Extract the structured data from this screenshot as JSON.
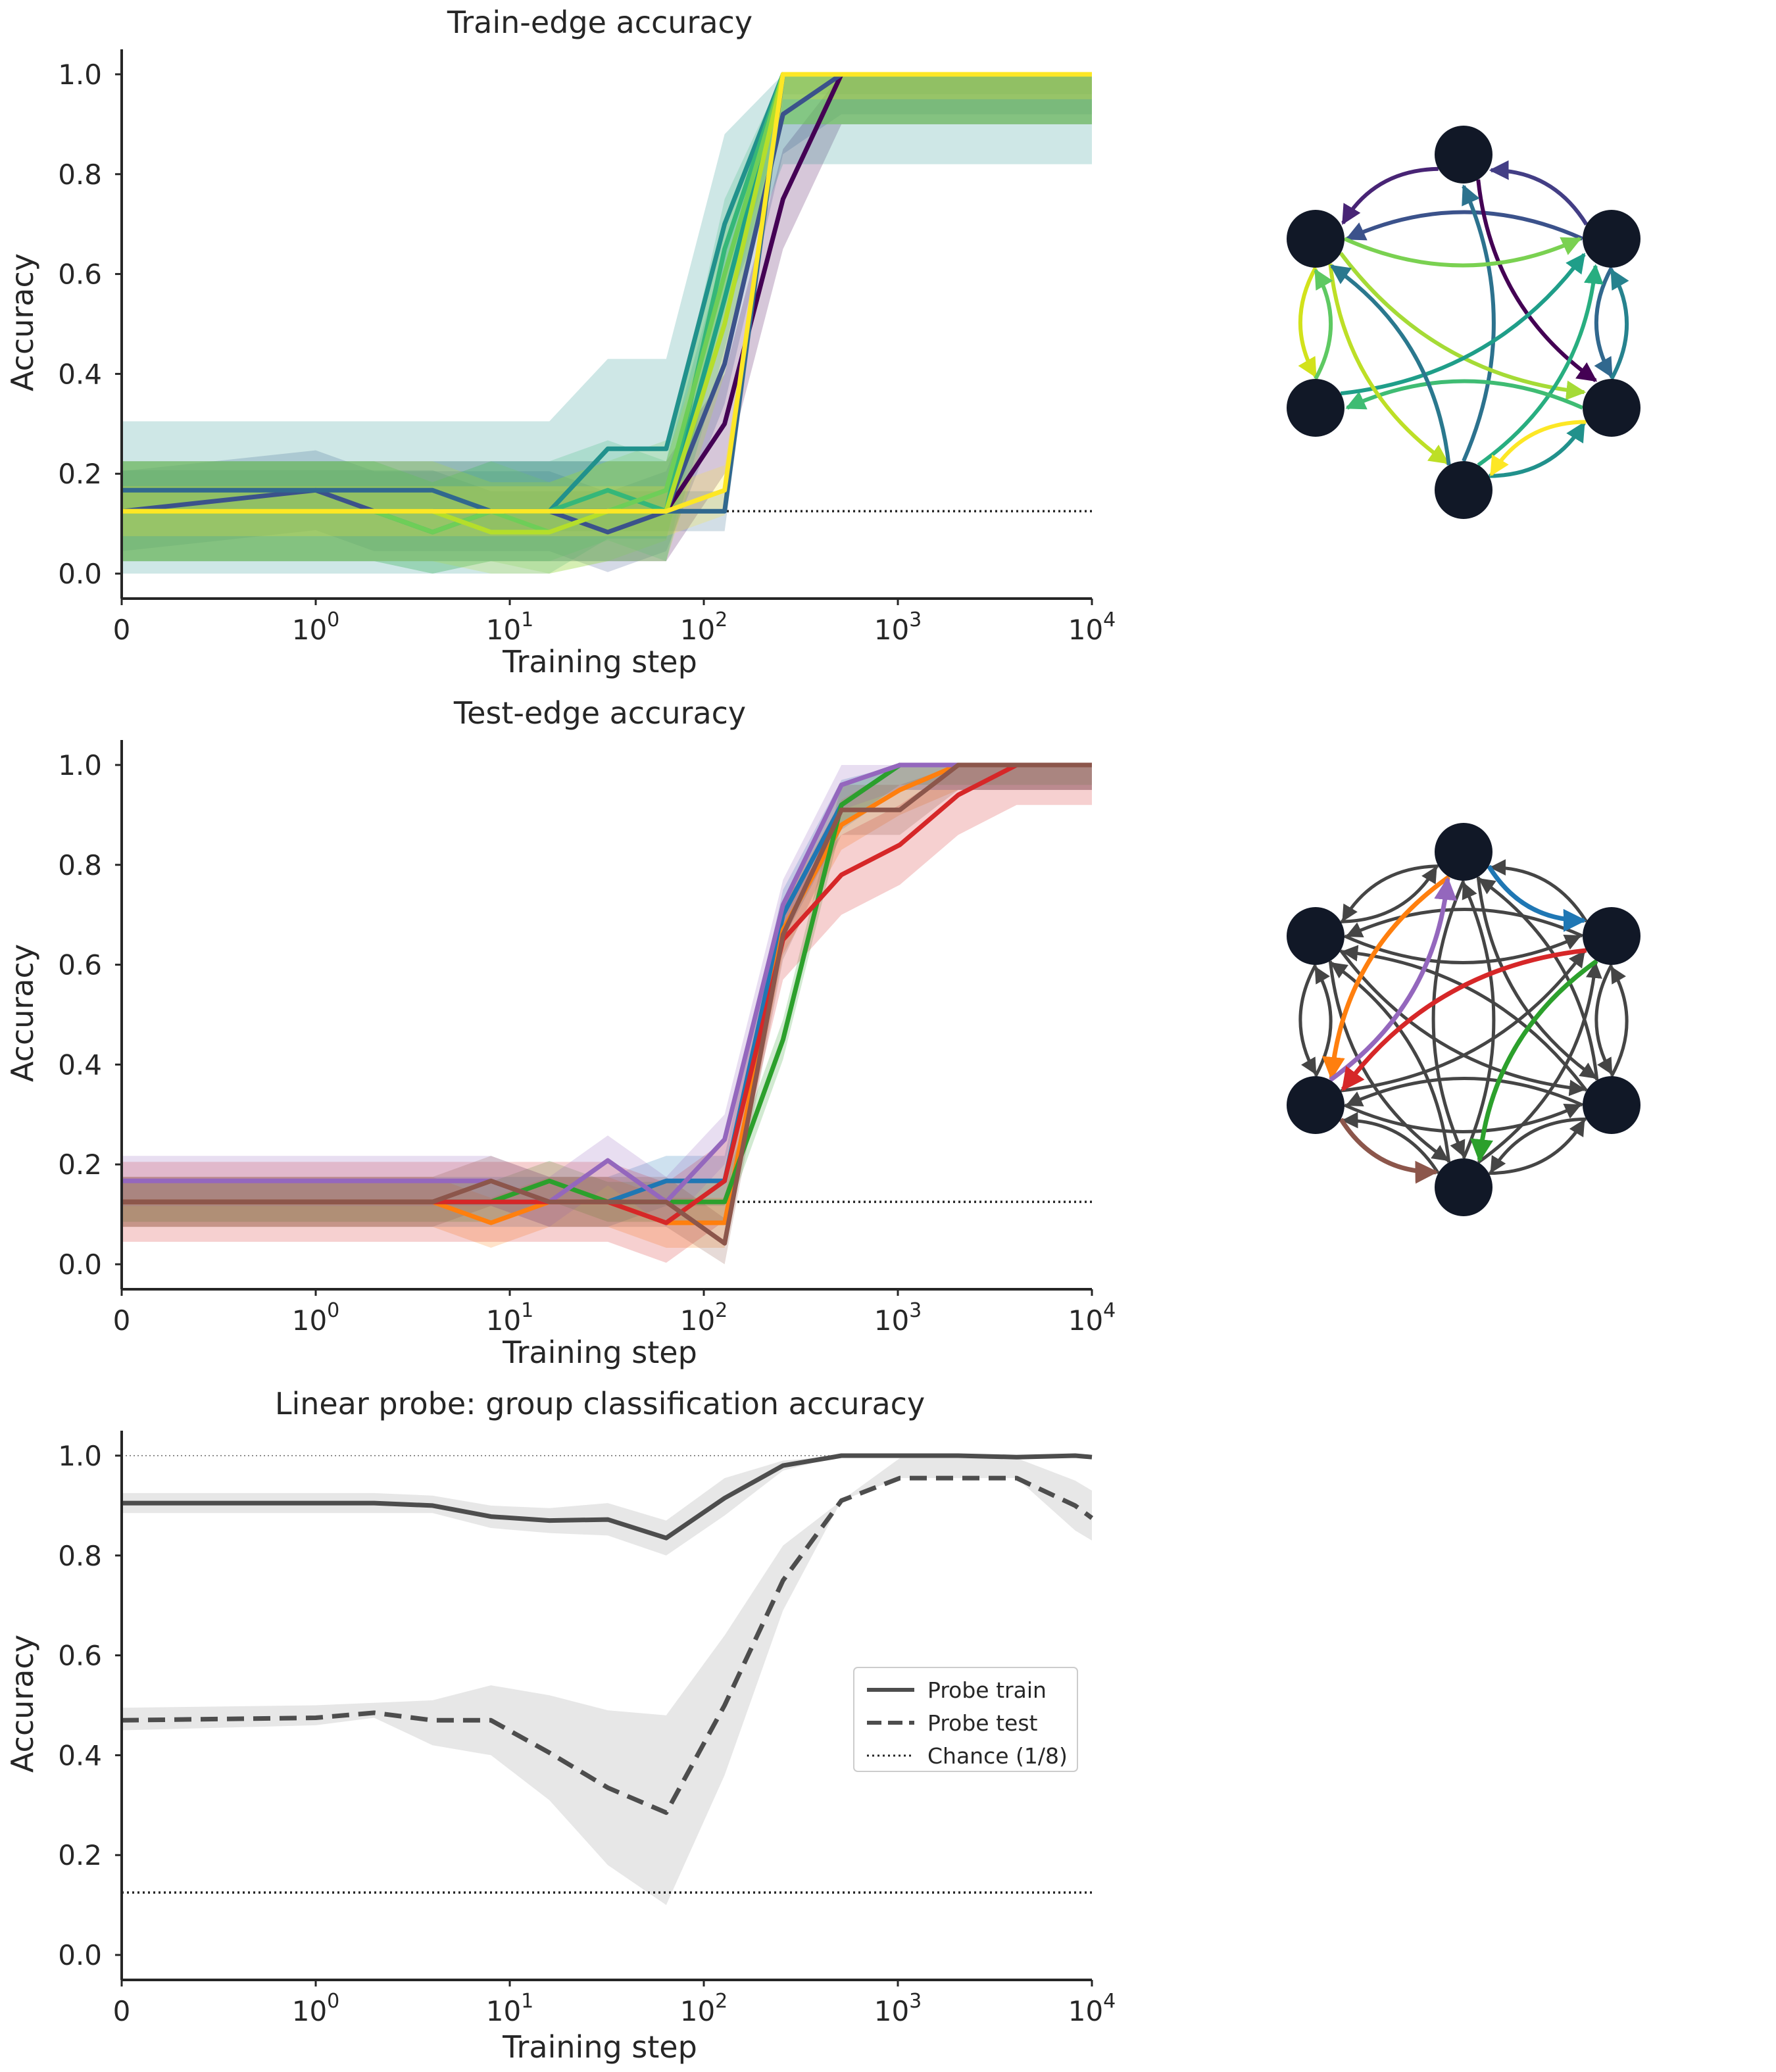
{
  "chart_data": [
    {
      "type": "line",
      "title": "Train-edge accuracy",
      "xlabel": "Training step",
      "ylabel": "Accuracy",
      "xscale": "symlog",
      "xlim": [
        0,
        10000
      ],
      "ylim": [
        -0.05,
        1.05
      ],
      "yticks": [
        "0.0",
        "0.2",
        "0.4",
        "0.6",
        "0.8",
        "1.0"
      ],
      "xticks": [
        {
          "base": "0",
          "exp": ""
        },
        {
          "base": "10",
          "exp": "0"
        },
        {
          "base": "10",
          "exp": "1"
        },
        {
          "base": "10",
          "exp": "2"
        },
        {
          "base": "10",
          "exp": "3"
        },
        {
          "base": "10",
          "exp": "4"
        }
      ],
      "x": [
        0,
        1,
        2,
        4,
        8,
        16,
        32,
        64,
        128,
        256,
        512,
        1024,
        2048,
        4096,
        10000
      ],
      "reference_line": {
        "y": 0.125,
        "style": "dotted"
      },
      "series": [
        {
          "color": "#440154",
          "values": [
            0.125,
            0.125,
            0.125,
            0.125,
            0.125,
            0.125,
            0.125,
            0.125,
            0.3,
            0.75,
            1.0,
            1.0,
            1.0,
            1.0,
            1.0
          ],
          "band": 0.1
        },
        {
          "color": "#3b528b",
          "values": [
            0.125,
            0.167,
            0.125,
            0.125,
            0.125,
            0.125,
            0.083,
            0.125,
            0.42,
            0.92,
            1.0,
            1.0,
            1.0,
            1.0,
            1.0
          ],
          "band": 0.08
        },
        {
          "color": "#31688e",
          "values": [
            0.167,
            0.167,
            0.167,
            0.167,
            0.125,
            0.125,
            0.125,
            0.125,
            0.125,
            1.0,
            1.0,
            1.0,
            1.0,
            1.0,
            1.0
          ],
          "band": 0.04
        },
        {
          "color": "#21918c",
          "values": [
            0.125,
            0.125,
            0.125,
            0.125,
            0.125,
            0.125,
            0.25,
            0.25,
            0.7,
            1.0,
            1.0,
            1.0,
            1.0,
            1.0,
            1.0
          ],
          "band": 0.18
        },
        {
          "color": "#1fa187",
          "values": [
            0.125,
            0.125,
            0.125,
            0.083,
            0.125,
            0.125,
            0.125,
            0.125,
            0.55,
            1.0,
            1.0,
            1.0,
            1.0,
            1.0,
            1.0
          ],
          "band": 0.1
        },
        {
          "color": "#35b779",
          "values": [
            0.125,
            0.125,
            0.125,
            0.125,
            0.125,
            0.125,
            0.167,
            0.125,
            0.65,
            1.0,
            1.0,
            1.0,
            1.0,
            1.0,
            1.0
          ],
          "band": 0.1
        },
        {
          "color": "#6ece58",
          "values": [
            0.125,
            0.125,
            0.125,
            0.083,
            0.125,
            0.083,
            0.125,
            0.167,
            0.6,
            1.0,
            1.0,
            1.0,
            1.0,
            1.0,
            1.0
          ],
          "band": 0.1
        },
        {
          "color": "#b5de2b",
          "values": [
            0.125,
            0.125,
            0.125,
            0.125,
            0.083,
            0.083,
            0.125,
            0.125,
            0.5,
            1.0,
            1.0,
            1.0,
            1.0,
            1.0,
            1.0
          ],
          "band": 0.1
        },
        {
          "color": "#fde725",
          "values": [
            0.125,
            0.125,
            0.125,
            0.125,
            0.125,
            0.125,
            0.125,
            0.125,
            0.167,
            1.0,
            1.0,
            1.0,
            1.0,
            1.0,
            1.0
          ],
          "band": 0.05
        }
      ]
    },
    {
      "type": "line",
      "title": "Test-edge accuracy",
      "xlabel": "Training step",
      "ylabel": "Accuracy",
      "xscale": "symlog",
      "xlim": [
        0,
        10000
      ],
      "ylim": [
        -0.05,
        1.05
      ],
      "yticks": [
        "0.0",
        "0.2",
        "0.4",
        "0.6",
        "0.8",
        "1.0"
      ],
      "xticks": [
        {
          "base": "0",
          "exp": ""
        },
        {
          "base": "10",
          "exp": "0"
        },
        {
          "base": "10",
          "exp": "1"
        },
        {
          "base": "10",
          "exp": "2"
        },
        {
          "base": "10",
          "exp": "3"
        },
        {
          "base": "10",
          "exp": "4"
        }
      ],
      "x": [
        0,
        1,
        2,
        4,
        8,
        16,
        32,
        64,
        128,
        256,
        512,
        1024,
        2048,
        4096,
        10000
      ],
      "reference_line": {
        "y": 0.125,
        "style": "dotted"
      },
      "series": [
        {
          "color": "#1f77b4",
          "values": [
            0.125,
            0.125,
            0.125,
            0.125,
            0.125,
            0.125,
            0.125,
            0.167,
            0.167,
            0.7,
            0.92,
            1.0,
            1.0,
            1.0,
            1.0
          ],
          "band": 0.05
        },
        {
          "color": "#ff7f0e",
          "values": [
            0.125,
            0.125,
            0.125,
            0.125,
            0.083,
            0.125,
            0.125,
            0.083,
            0.083,
            0.67,
            0.88,
            0.95,
            1.0,
            1.0,
            1.0
          ],
          "band": 0.05
        },
        {
          "color": "#2ca02c",
          "values": [
            0.125,
            0.125,
            0.125,
            0.125,
            0.125,
            0.167,
            0.125,
            0.125,
            0.125,
            0.45,
            0.92,
            1.0,
            1.0,
            1.0,
            1.0
          ],
          "band": 0.04
        },
        {
          "color": "#d62728",
          "values": [
            0.125,
            0.125,
            0.125,
            0.125,
            0.125,
            0.125,
            0.125,
            0.083,
            0.167,
            0.65,
            0.78,
            0.84,
            0.94,
            1.0,
            1.0
          ],
          "band": 0.08
        },
        {
          "color": "#9467bd",
          "values": [
            0.167,
            0.167,
            0.167,
            0.167,
            0.167,
            0.125,
            0.208,
            0.125,
            0.25,
            0.72,
            0.96,
            1.0,
            1.0,
            1.0,
            1.0
          ],
          "band": 0.05
        },
        {
          "color": "#8c564b",
          "values": [
            0.125,
            0.125,
            0.125,
            0.125,
            0.167,
            0.125,
            0.125,
            0.125,
            0.042,
            0.66,
            0.91,
            0.91,
            1.0,
            1.0,
            1.0
          ],
          "band": 0.05
        }
      ]
    },
    {
      "type": "line",
      "title": "Linear probe: group classification accuracy",
      "xlabel": "Training step",
      "ylabel": "Accuracy",
      "xscale": "symlog",
      "xlim": [
        0,
        10000
      ],
      "ylim": [
        -0.05,
        1.05
      ],
      "yticks": [
        "0.0",
        "0.2",
        "0.4",
        "0.6",
        "0.8",
        "1.0"
      ],
      "xticks": [
        {
          "base": "0",
          "exp": ""
        },
        {
          "base": "10",
          "exp": "0"
        },
        {
          "base": "10",
          "exp": "1"
        },
        {
          "base": "10",
          "exp": "2"
        },
        {
          "base": "10",
          "exp": "3"
        },
        {
          "base": "10",
          "exp": "4"
        }
      ],
      "x": [
        0,
        1,
        2,
        4,
        8,
        16,
        32,
        64,
        128,
        256,
        512,
        1024,
        2048,
        4096,
        8192,
        10000
      ],
      "reference_lines": [
        {
          "y": 1.0,
          "style": "thin-dotted"
        },
        {
          "y": 0.125,
          "style": "dotted"
        }
      ],
      "legend": {
        "placement": "center-right",
        "entries": [
          {
            "label": "Probe train",
            "style": "solid"
          },
          {
            "label": "Probe test",
            "style": "dashed"
          },
          {
            "label": "Chance (1/8)",
            "style": "dotted"
          }
        ]
      },
      "series": [
        {
          "name": "Probe train",
          "style": "solid",
          "color": "#4d4d4d",
          "values": [
            0.905,
            0.905,
            0.905,
            0.9,
            0.878,
            0.87,
            0.872,
            0.835,
            0.915,
            0.98,
            1.0,
            1.0,
            1.0,
            0.997,
            1.0,
            0.997
          ],
          "lower": [
            0.885,
            0.885,
            0.885,
            0.885,
            0.855,
            0.845,
            0.84,
            0.8,
            0.88,
            0.97,
            1.0,
            1.0,
            1.0,
            0.995,
            0.998,
            0.995
          ],
          "upper": [
            0.925,
            0.925,
            0.925,
            0.92,
            0.9,
            0.895,
            0.905,
            0.87,
            0.955,
            0.99,
            1.0,
            1.0,
            1.0,
            1.0,
            1.0,
            1.0
          ]
        },
        {
          "name": "Probe test",
          "style": "dashed",
          "color": "#4d4d4d",
          "values": [
            0.47,
            0.475,
            0.485,
            0.47,
            0.47,
            0.405,
            0.335,
            0.285,
            0.5,
            0.75,
            0.91,
            0.955,
            0.955,
            0.955,
            0.9,
            0.875
          ],
          "lower": [
            0.45,
            0.46,
            0.475,
            0.42,
            0.4,
            0.31,
            0.18,
            0.1,
            0.36,
            0.69,
            0.91,
            0.955,
            0.955,
            0.955,
            0.85,
            0.83
          ],
          "upper": [
            0.495,
            0.5,
            0.505,
            0.51,
            0.54,
            0.52,
            0.49,
            0.48,
            0.64,
            0.82,
            0.91,
            0.995,
            0.995,
            0.995,
            0.95,
            0.93
          ]
        }
      ]
    }
  ],
  "graphs": [
    {
      "node_color": "#111827",
      "edges": [
        {
          "from": 0,
          "to": 1,
          "color": "#482475"
        },
        {
          "from": 2,
          "to": 0,
          "color": "#433e85"
        },
        {
          "from": 2,
          "to": 1,
          "color": "#3b528b"
        },
        {
          "from": 2,
          "to": 4,
          "color": "#31688e"
        },
        {
          "from": 0,
          "to": 4,
          "color": "#440154"
        },
        {
          "from": 5,
          "to": 0,
          "color": "#2c728e"
        },
        {
          "from": 1,
          "to": 2,
          "color": "#7ad151"
        },
        {
          "from": 1,
          "to": 4,
          "color": "#a5db36"
        },
        {
          "from": 5,
          "to": 2,
          "color": "#28ae80"
        },
        {
          "from": 5,
          "to": 4,
          "color": "#21918c"
        },
        {
          "from": 4,
          "to": 3,
          "color": "#3fbc73"
        },
        {
          "from": 3,
          "to": 2,
          "color": "#1f9e89"
        },
        {
          "from": 1,
          "to": 3,
          "color": "#d2e21b"
        },
        {
          "from": 1,
          "to": 5,
          "color": "#bddf26"
        },
        {
          "from": 5,
          "to": 1,
          "color": "#2a788e"
        },
        {
          "from": 3,
          "to": 1,
          "color": "#5ec962"
        },
        {
          "from": 4,
          "to": 5,
          "color": "#fde725"
        },
        {
          "from": 4,
          "to": 2,
          "color": "#26828e"
        }
      ]
    },
    {
      "node_color": "#111827",
      "base_edge_color": "#454545",
      "highlighted_edges": [
        {
          "from": 0,
          "to": 2,
          "color": "#1f77b4"
        },
        {
          "from": 0,
          "to": 3,
          "color": "#ff7f0e"
        },
        {
          "from": 3,
          "to": 0,
          "color": "#9467bd"
        },
        {
          "from": 2,
          "to": 3,
          "color": "#d62728"
        },
        {
          "from": 2,
          "to": 5,
          "color": "#2ca02c"
        },
        {
          "from": 3,
          "to": 5,
          "color": "#8c564b"
        }
      ]
    }
  ]
}
